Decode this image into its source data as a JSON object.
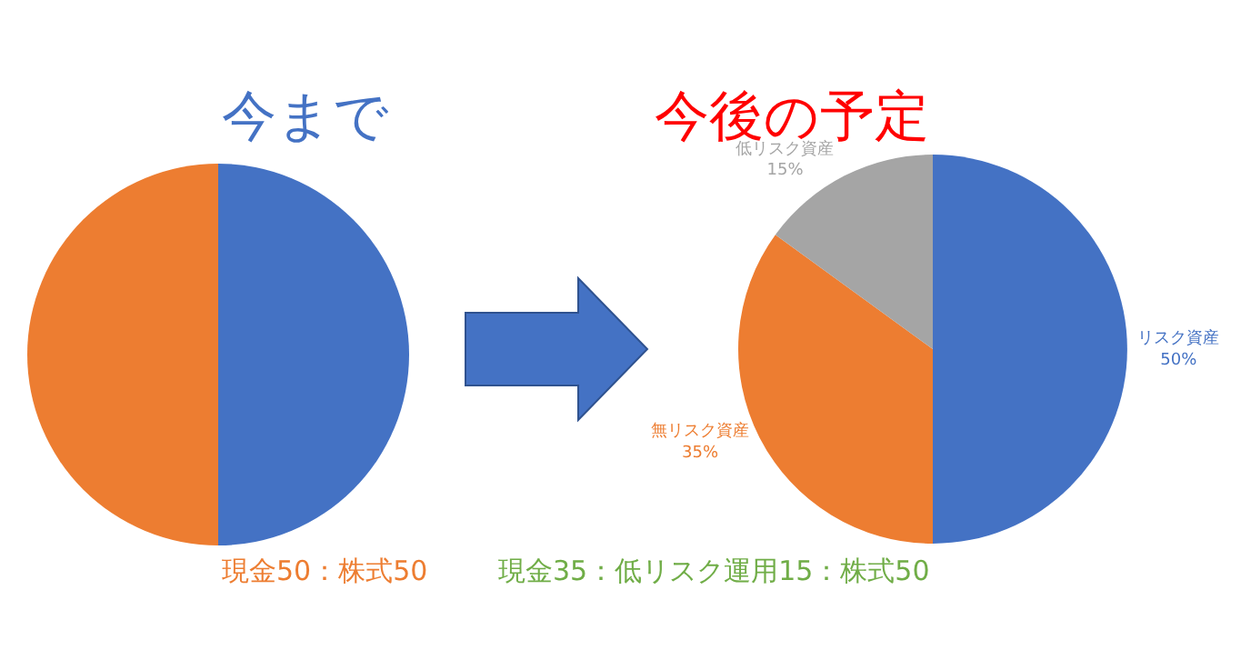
{
  "chart_data": [
    {
      "type": "pie",
      "title": "今まで",
      "categories": [
        null,
        null
      ],
      "values": [
        50,
        50
      ],
      "colors": [
        "#4472c4",
        "#ed7d31"
      ],
      "annotations": [
        "現金50：株式50"
      ]
    },
    {
      "type": "pie",
      "title": "今後の予定",
      "categories": [
        "リスク資産",
        "無リスク資産",
        "低リスク資産"
      ],
      "values": [
        50,
        35,
        15
      ],
      "colors": [
        "#4472c4",
        "#ed7d31",
        "#a5a5a5"
      ],
      "value_labels": [
        "50%",
        "35%",
        "15%"
      ],
      "annotations": [
        "現金35：低リスク運用15：株式50"
      ]
    }
  ]
}
